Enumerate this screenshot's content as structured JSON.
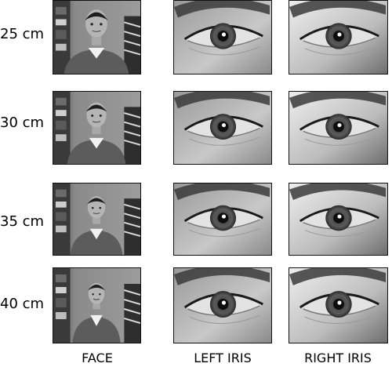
{
  "rows": [
    {
      "distance_label": "25 cm"
    },
    {
      "distance_label": "30 cm"
    },
    {
      "distance_label": "35 cm"
    },
    {
      "distance_label": "40 cm"
    }
  ],
  "columns": [
    {
      "label": "FACE"
    },
    {
      "label": "LEFT IRIS"
    },
    {
      "label": "RIGHT IRIS"
    }
  ]
}
